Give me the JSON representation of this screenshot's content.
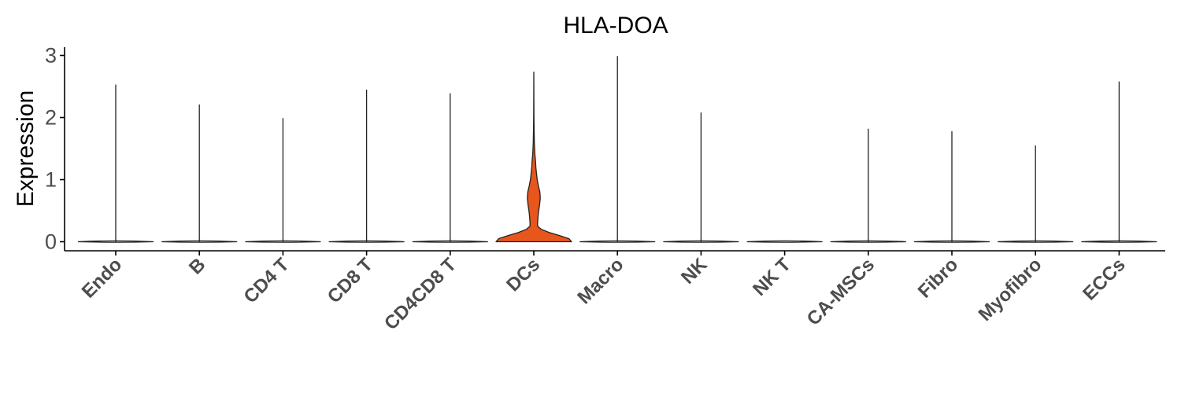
{
  "chart_data": {
    "type": "violin",
    "title": "HLA-DOA",
    "xlabel": "",
    "ylabel": "Expression",
    "ylim": [
      0,
      3.1
    ],
    "yticks": [
      0,
      1,
      2,
      3
    ],
    "grid": false,
    "legend": "none",
    "categories": [
      "Endo",
      "B",
      "CD4 T",
      "CD8 T",
      "CD4CD8 T",
      "DCs",
      "Macro",
      "NK",
      "NK T",
      "CA-MSCs",
      "Fibro",
      "Myofibro",
      "ECCs"
    ],
    "max_values": [
      2.53,
      2.21,
      1.99,
      2.45,
      2.39,
      2.73,
      2.99,
      2.08,
      0.0,
      1.82,
      1.78,
      1.55,
      2.58
    ],
    "highlight_color": "#e6561d",
    "default_fill": "#ffffff",
    "violin_profiles": {
      "DCs": [
        [
          0.0,
          1.0
        ],
        [
          0.05,
          0.93
        ],
        [
          0.1,
          0.68
        ],
        [
          0.15,
          0.4
        ],
        [
          0.2,
          0.2
        ],
        [
          0.25,
          0.1
        ],
        [
          0.3,
          0.1
        ],
        [
          0.4,
          0.11
        ],
        [
          0.5,
          0.13
        ],
        [
          0.6,
          0.155
        ],
        [
          0.7,
          0.17
        ],
        [
          0.8,
          0.16
        ],
        [
          0.9,
          0.12
        ],
        [
          1.0,
          0.09
        ],
        [
          1.1,
          0.07
        ],
        [
          1.2,
          0.055
        ],
        [
          1.3,
          0.045
        ],
        [
          1.4,
          0.03
        ],
        [
          1.6,
          0.015
        ],
        [
          1.8,
          0.008
        ],
        [
          2.0,
          0.004
        ],
        [
          2.3,
          0.002
        ],
        [
          2.73,
          0.0
        ]
      ]
    }
  }
}
